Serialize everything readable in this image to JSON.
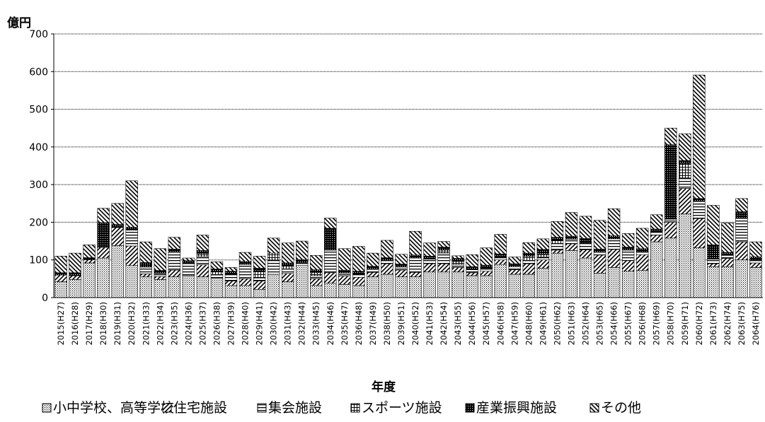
{
  "chart_data": {
    "type": "bar",
    "stacked": true,
    "title": "",
    "ylabel": "億円",
    "xlabel": "年度",
    "ylim": [
      0,
      700
    ],
    "yticks": [
      0,
      100,
      200,
      300,
      400,
      500,
      600,
      700
    ],
    "grid": true,
    "legend_position": "bottom",
    "categories": [
      "2015(H27)",
      "2016(H28)",
      "2017(H29)",
      "2018(H30)",
      "2019(H31)",
      "2020(H32)",
      "2021(H33)",
      "2022(H34)",
      "2023(H35)",
      "2024(H36)",
      "2025(H37)",
      "2026(H38)",
      "2027(H39)",
      "2028(H40)",
      "2029(H41)",
      "2030(H42)",
      "2031(H43)",
      "2032(H44)",
      "2033(H45)",
      "2034(H46)",
      "2035(H47)",
      "2036(H48)",
      "2037(H49)",
      "2038(H50)",
      "2039(H51)",
      "2040(H52)",
      "2041(H53)",
      "2042(H54)",
      "2043(H55)",
      "2044(H56)",
      "2045(H57)",
      "2046(H58)",
      "2047(H59)",
      "2048(H60)",
      "2049(H61)",
      "2050(H62)",
      "2051(H63)",
      "2052(H64)",
      "2053(H65)",
      "2054(H66)",
      "2055(H67)",
      "2056(H68)",
      "2057(H69)",
      "2058(H70)",
      "2059(H71)",
      "2060(H72)",
      "2061(H73)",
      "2062(H74)",
      "2063(H75)",
      "2064(H76)"
    ],
    "series": [
      {
        "name": "小中学校、高等学校",
        "pattern": "dots",
        "values": [
          42,
          48,
          92,
          105,
          138,
          85,
          55,
          48,
          55,
          58,
          55,
          52,
          32,
          32,
          22,
          62,
          42,
          85,
          32,
          38,
          35,
          32,
          55,
          62,
          55,
          55,
          68,
          68,
          68,
          58,
          58,
          88,
          62,
          62,
          78,
          118,
          125,
          105,
          65,
          80,
          70,
          72,
          148,
          158,
          222,
          132,
          82,
          82,
          100,
          80
        ]
      },
      {
        "name": "住宅施設",
        "pattern": "diagonal",
        "values": [
          18,
          10,
          8,
          28,
          48,
          52,
          8,
          8,
          18,
          0,
          32,
          0,
          12,
          18,
          22,
          0,
          22,
          0,
          18,
          28,
          22,
          22,
          12,
          28,
          18,
          12,
          22,
          22,
          12,
          8,
          12,
          12,
          12,
          28,
          22,
          8,
          18,
          22,
          48,
          48,
          28,
          42,
          18,
          42,
          68,
          78,
          8,
          22,
          48,
          12
        ]
      },
      {
        "name": "集会施設",
        "pattern": "horizontal",
        "values": [
          0,
          0,
          0,
          0,
          0,
          42,
          18,
          8,
          48,
          32,
          22,
          8,
          18,
          38,
          8,
          38,
          12,
          8,
          8,
          60,
          8,
          8,
          8,
          8,
          8,
          38,
          12,
          28,
          8,
          8,
          8,
          8,
          8,
          8,
          8,
          18,
          12,
          18,
          8,
          28,
          28,
          8,
          8,
          8,
          28,
          45,
          12,
          8,
          62,
          8
        ]
      },
      {
        "name": "スポーツ施設",
        "pattern": "grid",
        "values": [
          0,
          0,
          0,
          0,
          0,
          0,
          0,
          0,
          0,
          0,
          8,
          8,
          0,
          0,
          18,
          18,
          8,
          0,
          8,
          0,
          0,
          0,
          0,
          0,
          0,
          0,
          0,
          8,
          8,
          0,
          0,
          0,
          0,
          12,
          8,
          8,
          0,
          0,
          0,
          0,
          0,
          0,
          0,
          0,
          38,
          0,
          0,
          0,
          0,
          0
        ]
      },
      {
        "name": "産業振興施設",
        "pattern": "dense",
        "values": [
          6,
          8,
          6,
          66,
          8,
          8,
          12,
          8,
          8,
          8,
          8,
          8,
          8,
          8,
          8,
          0,
          8,
          8,
          8,
          58,
          8,
          8,
          8,
          8,
          8,
          8,
          8,
          8,
          8,
          8,
          8,
          8,
          8,
          8,
          12,
          8,
          8,
          12,
          8,
          8,
          8,
          8,
          8,
          198,
          8,
          8,
          38,
          8,
          18,
          8
        ]
      },
      {
        "name": "その他",
        "pattern": "diagonal-back",
        "values": [
          44,
          52,
          34,
          38,
          56,
          123,
          55,
          58,
          31,
          7,
          41,
          19,
          10,
          24,
          32,
          40,
          53,
          49,
          38,
          27,
          57,
          66,
          35,
          46,
          26,
          63,
          35,
          15,
          7,
          32,
          46,
          52,
          18,
          28,
          28,
          42,
          63,
          59,
          76,
          72,
          36,
          54,
          38,
          44,
          71,
          328,
          105,
          78,
          35,
          40
        ]
      }
    ]
  },
  "legend_items": [
    {
      "label": "小中学校、高等学校"
    },
    {
      "label": "住宅施設"
    },
    {
      "label": "集会施設"
    },
    {
      "label": "スポーツ施設"
    },
    {
      "label": "産業振興施設"
    },
    {
      "label": "その他"
    }
  ]
}
